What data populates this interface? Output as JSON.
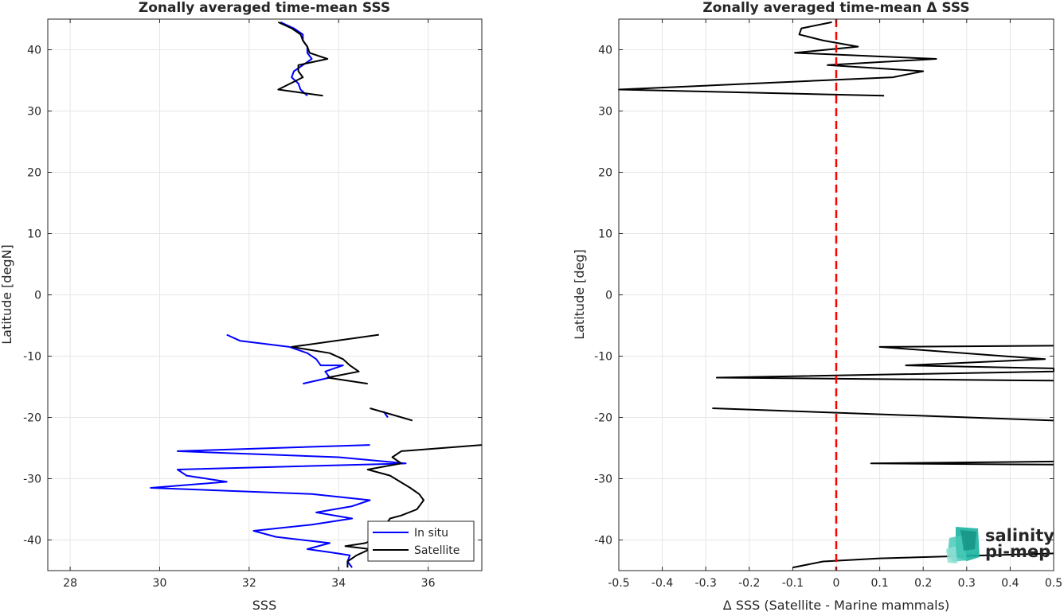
{
  "chart_data": [
    {
      "type": "line",
      "title": "Zonally averaged time-mean SSS",
      "xlabel": "SSS",
      "ylabel": "Latitude [degN]",
      "xlim": [
        27.5,
        37.2
      ],
      "ylim": [
        -45,
        45
      ],
      "xticks": [
        28,
        30,
        32,
        34,
        36
      ],
      "yticks": [
        -40,
        -30,
        -20,
        -10,
        0,
        10,
        20,
        30,
        40
      ],
      "grid": true,
      "legend_position": "bottom-right",
      "series": [
        {
          "name": "In situ",
          "color": "#0000ff",
          "segments": [
            [
              [
                32.7,
                44.5
              ],
              [
                33.0,
                43.5
              ],
              [
                33.2,
                42.5
              ],
              [
                33.2,
                41.5
              ],
              [
                33.3,
                40.5
              ],
              [
                33.3,
                39.5
              ],
              [
                33.4,
                38.5
              ],
              [
                33.2,
                37.5
              ],
              [
                33.0,
                36.5
              ],
              [
                32.95,
                35.5
              ],
              [
                33.1,
                34.5
              ],
              [
                33.15,
                33.5
              ],
              [
                33.3,
                32.5
              ]
            ],
            [
              [
                31.5,
                -6.5
              ],
              [
                31.8,
                -7.5
              ],
              [
                32.9,
                -8.5
              ],
              [
                33.3,
                -9.5
              ],
              [
                33.5,
                -10.5
              ],
              [
                33.6,
                -11.5
              ],
              [
                34.1,
                -11.5
              ],
              [
                33.7,
                -12.5
              ],
              [
                33.8,
                -13.5
              ],
              [
                33.2,
                -14.5
              ]
            ],
            [
              [
                35.0,
                -19.0
              ],
              [
                35.1,
                -20.0
              ]
            ],
            [
              [
                34.7,
                -24.5
              ],
              [
                30.4,
                -25.5
              ],
              [
                34.0,
                -26.5
              ],
              [
                35.5,
                -27.5
              ],
              [
                30.4,
                -28.5
              ],
              [
                30.6,
                -29.5
              ],
              [
                31.5,
                -30.5
              ],
              [
                29.8,
                -31.5
              ],
              [
                33.4,
                -32.5
              ],
              [
                34.7,
                -33.5
              ],
              [
                34.3,
                -34.5
              ],
              [
                33.5,
                -35.5
              ],
              [
                34.3,
                -36.5
              ],
              [
                33.4,
                -37.5
              ],
              [
                32.1,
                -38.5
              ],
              [
                32.6,
                -39.5
              ],
              [
                33.8,
                -40.5
              ],
              [
                33.3,
                -41.5
              ],
              [
                33.8,
                -42.0
              ],
              [
                34.25,
                -42.5
              ],
              [
                34.2,
                -43.5
              ],
              [
                34.3,
                -44.5
              ]
            ]
          ]
        },
        {
          "name": "Satellite",
          "color": "#000000",
          "segments": [
            [
              [
                32.65,
                44.5
              ],
              [
                32.95,
                43.5
              ],
              [
                33.15,
                42.5
              ],
              [
                33.2,
                41.5
              ],
              [
                33.3,
                40.5
              ],
              [
                33.35,
                39.5
              ],
              [
                33.75,
                38.5
              ],
              [
                33.1,
                37.5
              ],
              [
                33.1,
                36.5
              ],
              [
                33.2,
                35.5
              ],
              [
                32.65,
                33.5
              ],
              [
                33.65,
                32.5
              ]
            ],
            [
              [
                34.9,
                -6.5
              ],
              [
                32.95,
                -8.5
              ],
              [
                33.8,
                -9.5
              ],
              [
                34.1,
                -10.5
              ],
              [
                34.25,
                -11.5
              ],
              [
                34.45,
                -12.5
              ],
              [
                33.75,
                -13.5
              ],
              [
                34.65,
                -14.5
              ]
            ],
            [
              [
                34.7,
                -18.5
              ],
              [
                35.65,
                -20.5
              ]
            ],
            [
              [
                37.2,
                -24.5
              ],
              [
                35.4,
                -25.5
              ],
              [
                35.2,
                -26.5
              ],
              [
                35.4,
                -27.5
              ],
              [
                34.65,
                -28.5
              ],
              [
                35.15,
                -29.5
              ],
              [
                35.6,
                -31.5
              ],
              [
                35.8,
                -32.5
              ],
              [
                35.9,
                -33.5
              ],
              [
                35.75,
                -35.0
              ],
              [
                35.4,
                -36.0
              ],
              [
                35.15,
                -36.5
              ],
              [
                35.0,
                -38.0
              ],
              [
                34.9,
                -39.5
              ],
              [
                34.6,
                -40.5
              ],
              [
                34.15,
                -41.0
              ],
              [
                34.7,
                -41.5
              ],
              [
                34.4,
                -42.5
              ],
              [
                34.2,
                -43.5
              ],
              [
                34.2,
                -44.5
              ]
            ]
          ]
        }
      ]
    },
    {
      "type": "line",
      "title": "Zonally averaged time-mean Δ SSS",
      "xlabel": "Δ SSS (Satellite - Marine mammals)",
      "ylabel": "Latitude [deg]",
      "xlim": [
        -0.5,
        0.5
      ],
      "ylim": [
        -45,
        45
      ],
      "xticks": [
        -0.5,
        -0.4,
        -0.3,
        -0.2,
        -0.1,
        0,
        0.1,
        0.2,
        0.3,
        0.4,
        0.5
      ],
      "yticks": [
        -40,
        -30,
        -20,
        -10,
        0,
        10,
        20,
        30,
        40
      ],
      "grid": true,
      "series": [
        {
          "name": "",
          "color": "#000000",
          "segments": [
            [
              [
                -0.01,
                44.5
              ],
              [
                -0.08,
                43.5
              ],
              [
                -0.085,
                42.5
              ],
              [
                -0.03,
                41.5
              ],
              [
                0.05,
                40.5
              ],
              [
                -0.095,
                39.5
              ],
              [
                0.23,
                38.5
              ],
              [
                -0.02,
                37.5
              ],
              [
                0.2,
                36.5
              ],
              [
                0.13,
                35.5
              ],
              [
                -0.5,
                33.5
              ],
              [
                0.11,
                32.5
              ]
            ],
            [
              [
                0.5,
                -8.3
              ],
              [
                0.1,
                -8.5
              ],
              [
                0.48,
                -10.5
              ],
              [
                0.16,
                -11.5
              ],
              [
                0.5,
                -12.0
              ],
              [
                0.5,
                -12.5
              ],
              [
                -0.275,
                -13.5
              ],
              [
                0.5,
                -14.0
              ]
            ],
            [
              [
                -0.285,
                -18.5
              ],
              [
                0.5,
                -20.5
              ]
            ],
            [
              [
                0.5,
                -27.2
              ],
              [
                0.08,
                -27.5
              ],
              [
                0.5,
                -27.7
              ]
            ],
            [
              [
                0.5,
                -42.2
              ],
              [
                0.1,
                -43.0
              ],
              [
                -0.03,
                -43.5
              ],
              [
                -0.1,
                -44.5
              ]
            ]
          ]
        }
      ],
      "reference_line": {
        "x": 0,
        "color": "#ff0000",
        "style": "dashed"
      },
      "logo": {
        "line1": "salinity",
        "line2": "pi-mep",
        "color": "#1ab3a0"
      }
    }
  ]
}
